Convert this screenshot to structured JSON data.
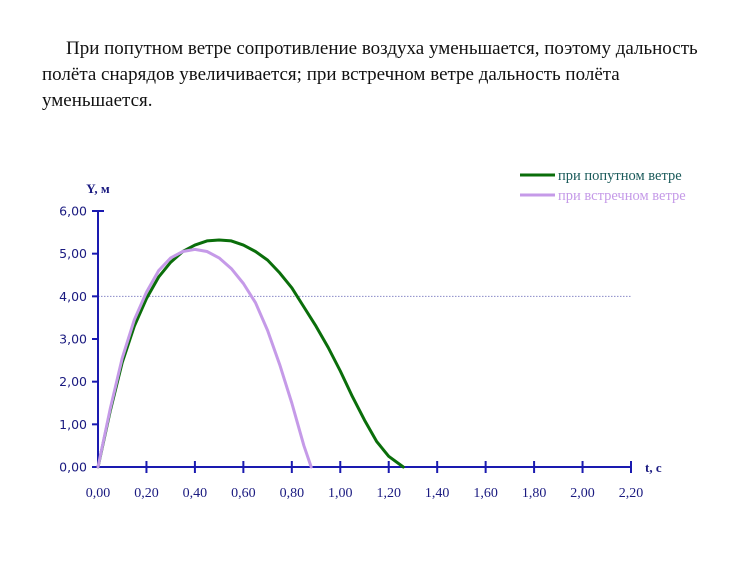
{
  "paragraph": "При попутном ветре сопротивление воздуха уменьшается, поэтому дальность полёта снарядов увеличивается; при встречном ветре дальность полёта уменьшается.",
  "colors": {
    "axis": "#1a1ab0",
    "tailwind": "#0a6e0a",
    "headwind": "#c59ae8",
    "reference_line": "#8a8ac8",
    "text": "#1a1a80"
  },
  "chart_data": {
    "type": "line",
    "title": "",
    "xlabel": "t, c",
    "ylabel": "Y, м",
    "xlim": [
      0,
      2.2
    ],
    "ylim": [
      0,
      6
    ],
    "x_ticks": [
      "0,00",
      "0,20",
      "0,40",
      "0,60",
      "0,80",
      "1,00",
      "1,20",
      "1,40",
      "1,60",
      "1,80",
      "2,00",
      "2,20"
    ],
    "y_ticks": [
      "0,00",
      "1,00",
      "2,00",
      "3,00",
      "4,00",
      "5,00",
      "6,00"
    ],
    "reference_line": {
      "y": 4.0,
      "style": "dotted"
    },
    "legend_position": "top-right",
    "series": [
      {
        "name": "при попутном ветре",
        "color": "#0a6e0a",
        "x": [
          0.0,
          0.05,
          0.1,
          0.15,
          0.2,
          0.25,
          0.3,
          0.35,
          0.4,
          0.45,
          0.5,
          0.55,
          0.6,
          0.65,
          0.7,
          0.75,
          0.8,
          0.85,
          0.9,
          0.95,
          1.0,
          1.05,
          1.1,
          1.15,
          1.2,
          1.26
        ],
        "y": [
          0.0,
          1.3,
          2.45,
          3.3,
          3.95,
          4.45,
          4.8,
          5.05,
          5.2,
          5.3,
          5.32,
          5.3,
          5.2,
          5.05,
          4.85,
          4.55,
          4.2,
          3.75,
          3.3,
          2.8,
          2.25,
          1.65,
          1.1,
          0.6,
          0.25,
          0.0
        ]
      },
      {
        "name": "при встречном ветре",
        "color": "#c59ae8",
        "x": [
          0.0,
          0.05,
          0.1,
          0.15,
          0.2,
          0.25,
          0.3,
          0.35,
          0.4,
          0.45,
          0.5,
          0.55,
          0.6,
          0.65,
          0.7,
          0.75,
          0.8,
          0.85,
          0.88
        ],
        "y": [
          0.0,
          1.35,
          2.55,
          3.45,
          4.1,
          4.6,
          4.9,
          5.05,
          5.1,
          5.05,
          4.9,
          4.65,
          4.3,
          3.85,
          3.2,
          2.4,
          1.5,
          0.5,
          0.0
        ]
      }
    ]
  }
}
